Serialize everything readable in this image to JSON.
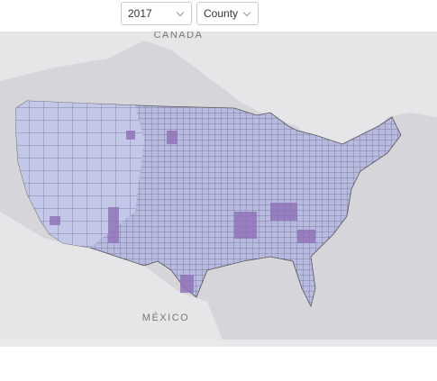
{
  "controls": {
    "year": "2017",
    "level": "County"
  },
  "map": {
    "labels": [
      "CANADA",
      "MÉXICO"
    ]
  }
}
